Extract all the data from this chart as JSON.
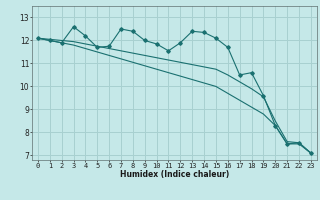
{
  "title": "",
  "xlabel": "Humidex (Indice chaleur)",
  "background_color": "#c5e8e8",
  "grid_color": "#a8d0d0",
  "line_color": "#1a7070",
  "x_values": [
    0,
    1,
    2,
    3,
    4,
    5,
    6,
    7,
    8,
    9,
    10,
    11,
    12,
    13,
    14,
    15,
    16,
    17,
    18,
    19,
    20,
    21,
    22,
    23
  ],
  "series1": [
    12.1,
    12.0,
    11.9,
    12.6,
    12.2,
    11.7,
    11.75,
    12.5,
    12.4,
    12.0,
    11.85,
    11.55,
    11.9,
    12.4,
    12.35,
    12.1,
    11.7,
    10.5,
    10.6,
    9.6,
    8.3,
    7.5,
    7.55,
    7.1
  ],
  "series2": [
    12.1,
    12.0,
    11.9,
    11.8,
    11.65,
    11.5,
    11.35,
    11.2,
    11.05,
    10.9,
    10.75,
    10.6,
    10.45,
    10.3,
    10.15,
    10.0,
    9.7,
    9.4,
    9.1,
    8.8,
    8.3,
    7.5,
    7.5,
    7.1
  ],
  "series3": [
    12.1,
    12.05,
    12.0,
    11.95,
    11.85,
    11.75,
    11.65,
    11.55,
    11.45,
    11.35,
    11.25,
    11.15,
    11.05,
    10.95,
    10.85,
    10.75,
    10.5,
    10.2,
    9.9,
    9.55,
    8.5,
    7.6,
    7.55,
    7.1
  ],
  "ylim": [
    6.8,
    13.5
  ],
  "xlim": [
    -0.5,
    23.5
  ],
  "yticks": [
    7,
    8,
    9,
    10,
    11,
    12,
    13
  ],
  "xticks": [
    0,
    1,
    2,
    3,
    4,
    5,
    6,
    7,
    8,
    9,
    10,
    11,
    12,
    13,
    14,
    15,
    16,
    17,
    18,
    19,
    20,
    21,
    22,
    23
  ],
  "xlabel_fontsize": 5.5,
  "tick_fontsize": 5.0
}
